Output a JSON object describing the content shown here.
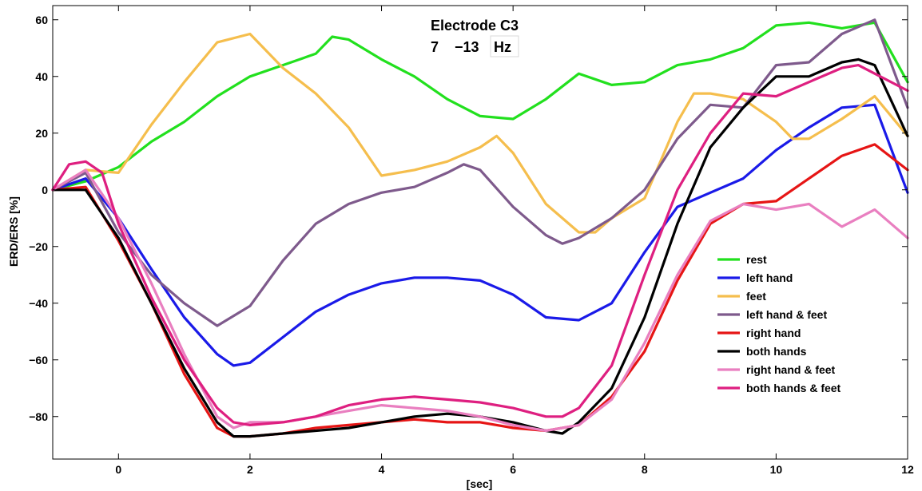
{
  "chart_data": {
    "type": "line",
    "title": "Electrode C3",
    "subtitle": {
      "prefix": "7    −13",
      "unit": "Hz"
    },
    "xlabel": "[sec]",
    "ylabel": "ERD/ERS [%]",
    "xlim": [
      -1,
      12
    ],
    "ylim": [
      -95,
      65
    ],
    "xticks": [
      0,
      2,
      4,
      6,
      8,
      10,
      12
    ],
    "yticks": [
      -80,
      -60,
      -40,
      -20,
      0,
      20,
      40,
      60
    ],
    "grid": false,
    "legend_position": "right",
    "series": [
      {
        "name": "rest",
        "color": "#22e01e",
        "x": [
          -1,
          -0.5,
          0,
          0.5,
          1,
          1.5,
          2,
          2.5,
          3,
          3.25,
          3.5,
          4,
          4.5,
          5,
          5.5,
          6,
          6.5,
          7,
          7.5,
          8,
          8.5,
          9,
          9.5,
          10,
          10.5,
          11,
          11.5,
          12
        ],
        "y": [
          0,
          3,
          8,
          17,
          24,
          33,
          40,
          44,
          48,
          54,
          53,
          46,
          40,
          32,
          26,
          25,
          32,
          41,
          37,
          38,
          44,
          46,
          50,
          58,
          59,
          57,
          59,
          38
        ]
      },
      {
        "name": "left hand",
        "color": "#1a1ae8",
        "x": [
          -1,
          -0.5,
          0,
          0.5,
          1,
          1.5,
          1.75,
          2,
          2.5,
          3,
          3.5,
          4,
          4.5,
          5,
          5.5,
          6,
          6.5,
          7,
          7.5,
          8,
          8.5,
          9,
          9.5,
          10,
          10.5,
          11,
          11.5,
          12
        ],
        "y": [
          0,
          4,
          -10,
          -28,
          -45,
          -58,
          -62,
          -61,
          -52,
          -43,
          -37,
          -33,
          -31,
          -31,
          -32,
          -37,
          -45,
          -46,
          -40,
          -22,
          -6,
          -1,
          4,
          14,
          22,
          29,
          30,
          -1
        ]
      },
      {
        "name": "feet",
        "color": "#f5be4d",
        "x": [
          -1,
          -0.5,
          0,
          0.5,
          1,
          1.5,
          2,
          2.5,
          3,
          3.5,
          4,
          4.5,
          5,
          5.5,
          5.75,
          6,
          6.5,
          7,
          7.25,
          7.5,
          8,
          8.5,
          8.75,
          9,
          9.5,
          10,
          10.25,
          10.5,
          11,
          11.5,
          12
        ],
        "y": [
          0,
          7,
          6,
          23,
          38,
          52,
          55,
          43,
          34,
          22,
          5,
          7,
          10,
          15,
          19,
          13,
          -5,
          -15,
          -15,
          -10,
          -3,
          24,
          34,
          34,
          32,
          24,
          18,
          18,
          25,
          33,
          19
        ]
      },
      {
        "name": "left hand & feet",
        "color": "#7e5a8c",
        "x": [
          -1,
          -0.5,
          0,
          0.5,
          1,
          1.5,
          2,
          2.5,
          3,
          3.5,
          4,
          4.5,
          5,
          5.25,
          5.5,
          6,
          6.5,
          6.75,
          7,
          7.5,
          8,
          8.5,
          9,
          9.5,
          10,
          10.5,
          11,
          11.5,
          12
        ],
        "y": [
          0,
          6,
          -15,
          -30,
          -40,
          -48,
          -41,
          -25,
          -12,
          -5,
          -1,
          1,
          6,
          9,
          7,
          -6,
          -16,
          -19,
          -17,
          -10,
          0,
          18,
          30,
          29,
          44,
          45,
          55,
          60,
          29
        ]
      },
      {
        "name": "right hand",
        "color": "#e61515",
        "x": [
          -1,
          -0.5,
          0,
          0.5,
          1,
          1.5,
          1.75,
          2,
          2.5,
          3,
          3.5,
          4,
          4.5,
          5,
          5.5,
          6,
          6.5,
          7,
          7.5,
          8,
          8.5,
          9,
          9.5,
          10,
          10.5,
          11,
          11.5,
          12
        ],
        "y": [
          0,
          1,
          -18,
          -40,
          -65,
          -84,
          -87,
          -87,
          -86,
          -84,
          -83,
          -82,
          -81,
          -82,
          -82,
          -84,
          -85,
          -83,
          -73,
          -57,
          -32,
          -12,
          -5,
          -4,
          4,
          12,
          16,
          7
        ]
      },
      {
        "name": "both hands",
        "color": "#000000",
        "x": [
          -1,
          -0.5,
          0,
          0.5,
          1,
          1.5,
          1.75,
          2,
          2.5,
          3,
          3.5,
          4,
          4.5,
          5,
          5.5,
          6,
          6.5,
          6.75,
          7,
          7.5,
          8,
          8.5,
          9,
          9.5,
          10,
          10.5,
          11,
          11.25,
          11.5,
          12
        ],
        "y": [
          0,
          0,
          -17,
          -40,
          -63,
          -82,
          -87,
          -87,
          -86,
          -85,
          -84,
          -82,
          -80,
          -79,
          -80,
          -82,
          -85,
          -86,
          -82,
          -70,
          -45,
          -12,
          15,
          29,
          40,
          40,
          45,
          46,
          44,
          19
        ]
      },
      {
        "name": "right hand & feet",
        "color": "#e97fc0",
        "x": [
          -1,
          -0.5,
          0,
          0.5,
          1,
          1.5,
          1.75,
          2,
          2.5,
          3,
          3.5,
          4,
          4.5,
          5,
          5.5,
          6,
          6.5,
          7,
          7.5,
          8,
          8.5,
          9,
          9.5,
          10,
          10.5,
          11,
          11.5,
          12
        ],
        "y": [
          0,
          7,
          -10,
          -33,
          -58,
          -80,
          -84,
          -82,
          -82,
          -80,
          -78,
          -76,
          -77,
          -78,
          -80,
          -83,
          -85,
          -83,
          -74,
          -54,
          -30,
          -11,
          -5,
          -7,
          -5,
          -13,
          -7,
          -17
        ]
      },
      {
        "name": "both hands & feet",
        "color": "#de1f80",
        "x": [
          -1,
          -0.75,
          -0.5,
          -0.25,
          0,
          0.5,
          1,
          1.5,
          1.75,
          2,
          2.5,
          3,
          3.5,
          4,
          4.5,
          5,
          5.5,
          6,
          6.5,
          6.75,
          7,
          7.5,
          8,
          8.5,
          9,
          9.5,
          10,
          10.5,
          11,
          11.25,
          11.5,
          12
        ],
        "y": [
          0,
          9,
          10,
          6,
          -12,
          -38,
          -60,
          -77,
          -82,
          -83,
          -82,
          -80,
          -76,
          -74,
          -73,
          -74,
          -75,
          -77,
          -80,
          -80,
          -77,
          -62,
          -30,
          0,
          20,
          34,
          33,
          38,
          43,
          44,
          41,
          35
        ]
      }
    ]
  }
}
